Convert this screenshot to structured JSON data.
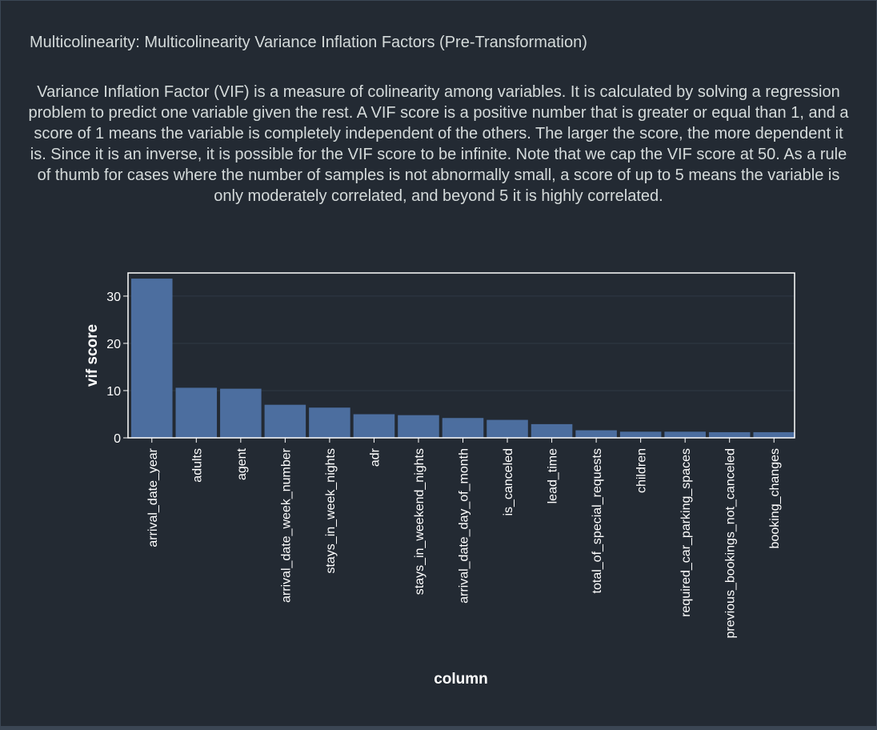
{
  "panel": {
    "title": "Multicolinearity: Multicolinearity Variance Inflation Factors (Pre-Transformation)",
    "description": "Variance Inflation Factor (VIF) is a measure of colinearity among variables. It is calculated by solving a regression problem to predict one variable given the rest. A VIF score is a positive number that is greater or equal than 1, and a score of 1 means the variable is completely independent of the others. The larger the score, the more dependent it is. Since it is an inverse, it is possible for the VIF score to be infinite. Note that we cap the VIF score at 50. As a rule of thumb for cases where the number of samples is not abnormally small, a score of up to 5 means the variable is only moderately correlated, and beyond 5 it is highly correlated."
  },
  "chart_data": {
    "type": "bar",
    "categories": [
      "arrival_date_year",
      "adults",
      "agent",
      "arrival_date_week_number",
      "stays_in_week_nights",
      "adr",
      "stays_in_weekend_nights",
      "arrival_date_day_of_month",
      "is_canceled",
      "lead_time",
      "total_of_special_requests",
      "children",
      "required_car_parking_spaces",
      "previous_bookings_not_canceled",
      "booking_changes"
    ],
    "values": [
      33.7,
      10.6,
      10.4,
      7.0,
      6.4,
      5.0,
      4.8,
      4.2,
      3.8,
      2.9,
      1.6,
      1.3,
      1.3,
      1.2,
      1.2
    ],
    "xlabel": "column",
    "ylabel": "vif score",
    "ylim": [
      0,
      34.9
    ],
    "yticks": [
      0,
      10,
      20,
      30
    ],
    "grid": true,
    "colors": {
      "bar": "#4c6e9f",
      "axis": "#ffffff",
      "grid": "#2f3946",
      "text": "#ffffff"
    }
  }
}
